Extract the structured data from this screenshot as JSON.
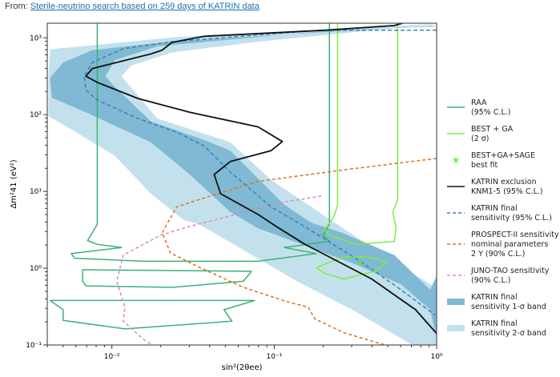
{
  "header": {
    "prefix": "From:",
    "link_text": "Sterile-neutrino search based on 259 days of KATRIN data"
  },
  "chart_data": {
    "type": "line",
    "title": "",
    "xlabel": "sin²(2θee)",
    "ylabel": "Δm²41 (eV²)",
    "xscale": "log",
    "yscale": "log",
    "xlim": [
      0.004,
      1.0
    ],
    "ylim": [
      0.1,
      1550
    ],
    "x_ticks": [
      {
        "value": 0.01,
        "label": "10⁻²"
      },
      {
        "value": 0.1,
        "label": "10⁻¹"
      },
      {
        "value": 1,
        "label": "10⁰"
      }
    ],
    "y_ticks": [
      {
        "value": 0.1,
        "label": "10⁻¹"
      },
      {
        "value": 1,
        "label": "10⁰"
      },
      {
        "value": 10,
        "label": "10¹"
      },
      {
        "value": 100,
        "label": "10²"
      },
      {
        "value": 1000,
        "label": "10³"
      }
    ],
    "legend_position": "right-outside",
    "series": [
      {
        "name": "KATRIN final sensitivity 2-σ band",
        "kind": "band",
        "color": "#c3e1ec",
        "points_log10": [
          [
            -0.03,
            3.18
          ],
          [
            -1.6,
            3.01
          ],
          [
            -2.38,
            2.85
          ],
          [
            -2.39,
            2.5
          ],
          [
            -2.39,
            1.98
          ],
          [
            -2.22,
            1.77
          ],
          [
            -1.98,
            1.46
          ],
          [
            -1.76,
            0.97
          ],
          [
            -1.56,
            0.63
          ],
          [
            -1.46,
            0.57
          ],
          [
            -0.86,
            -0.17
          ],
          [
            -0.52,
            -0.54
          ],
          [
            -0.15,
            -1.0
          ],
          [
            0,
            -1.0
          ],
          [
            0,
            -0.26
          ],
          [
            -0.32,
            0.16
          ],
          [
            -0.59,
            0.54
          ],
          [
            -1.02,
            1.15
          ],
          [
            -1.27,
            1.64
          ],
          [
            -1.72,
            1.95
          ],
          [
            -1.94,
            2.5
          ],
          [
            -1.88,
            2.64
          ],
          [
            -1.63,
            2.81
          ],
          [
            -1.1,
            2.95
          ],
          [
            0,
            3.18
          ]
        ]
      },
      {
        "name": "KATRIN final sensitivity 1-σ band",
        "kind": "band",
        "color": "#7fb9d4",
        "points_log10": [
          [
            -0.03,
            3.16
          ],
          [
            -1.64,
            2.95
          ],
          [
            -2.12,
            2.84
          ],
          [
            -2.3,
            2.68
          ],
          [
            -2.38,
            2.48
          ],
          [
            -2.37,
            2.22
          ],
          [
            -2.14,
            2.01
          ],
          [
            -1.76,
            1.64
          ],
          [
            -1.52,
            1.22
          ],
          [
            -1.27,
            0.73
          ],
          [
            -1.1,
            0.52
          ],
          [
            -0.93,
            0.39
          ],
          [
            -0.5,
            0.05
          ],
          [
            -0.22,
            -0.21
          ],
          [
            -0.04,
            -0.54
          ],
          [
            0,
            -0.92
          ],
          [
            0,
            -0.1
          ],
          [
            -0.04,
            -0.28
          ],
          [
            -0.26,
            0.17
          ],
          [
            -0.58,
            0.46
          ],
          [
            -0.77,
            0.59
          ],
          [
            -0.94,
            0.83
          ],
          [
            -1.27,
            1.53
          ],
          [
            -1.43,
            1.67
          ],
          [
            -1.76,
            1.91
          ],
          [
            -1.98,
            2.36
          ],
          [
            -2.04,
            2.5
          ],
          [
            -1.98,
            2.71
          ],
          [
            -1.72,
            2.89
          ],
          [
            -0.68,
            3.09
          ],
          [
            0,
            3.15
          ]
        ]
      },
      {
        "name": "RAA (95% C.L.)",
        "kind": "line",
        "color": "#3bb273",
        "dash": "",
        "points_log10": [
          [
            -0.66,
            3.19
          ],
          [
            -0.66,
            0.57
          ],
          [
            -0.7,
            0.43
          ],
          [
            -0.66,
            0.35
          ],
          [
            -0.94,
            0.27
          ],
          [
            -0.74,
            0.19
          ],
          [
            -1.1,
            0.09
          ],
          [
            -1.8,
            0.09
          ],
          [
            -2.23,
            0.13
          ],
          [
            -2.25,
            0.19
          ],
          [
            -1.94,
            0.27
          ],
          [
            -2.09,
            0.31
          ],
          [
            -2.15,
            0.36
          ],
          [
            -2.11,
            0.5
          ],
          [
            -2.09,
            0.57
          ],
          [
            -2.09,
            3.19
          ]
        ]
      },
      {
        "name": "RAA island 1",
        "kind": "loop",
        "color": "#3bb273",
        "dash": "",
        "points_log10": [
          [
            -2.18,
            -0.02
          ],
          [
            -1.14,
            -0.04
          ],
          [
            -1.19,
            -0.17
          ],
          [
            -1.63,
            -0.25
          ],
          [
            -2.16,
            -0.23
          ],
          [
            -2.18,
            -0.17
          ],
          [
            -2.18,
            -0.02
          ]
        ]
      },
      {
        "name": "RAA island 2",
        "kind": "loop",
        "color": "#3bb273",
        "dash": "",
        "points_log10": [
          [
            -2.38,
            -0.42
          ],
          [
            -1.12,
            -0.42
          ],
          [
            -1.31,
            -0.54
          ],
          [
            -1.26,
            -0.69
          ],
          [
            -1.92,
            -0.79
          ],
          [
            -2.3,
            -0.68
          ],
          [
            -2.3,
            -0.54
          ],
          [
            -2.38,
            -0.42
          ]
        ]
      },
      {
        "name": "BEST + GA (2σ)",
        "kind": "line",
        "color": "#7cf03c",
        "dash": "",
        "points_log10": [
          [
            -0.61,
            3.19
          ],
          [
            -0.61,
            0.83
          ],
          [
            -0.63,
            0.68
          ],
          [
            -0.69,
            0.5
          ],
          [
            -0.66,
            0.43
          ],
          [
            -0.49,
            0.31
          ],
          [
            -0.26,
            0.35
          ],
          [
            -0.25,
            0.53
          ],
          [
            -0.27,
            0.73
          ],
          [
            -0.24,
            0.89
          ],
          [
            -0.24,
            3.19
          ]
        ]
      },
      {
        "name": "BEST + GA island",
        "kind": "loop",
        "color": "#7cf03c",
        "dash": "",
        "points_log10": [
          [
            -0.74,
            0.01
          ],
          [
            -0.57,
            0.15
          ],
          [
            -0.4,
            0.14
          ],
          [
            -0.31,
            0.07
          ],
          [
            -0.38,
            -0.04
          ],
          [
            -0.57,
            -0.14
          ],
          [
            -0.69,
            -0.07
          ],
          [
            -0.74,
            0.01
          ]
        ]
      },
      {
        "name": "PROSPECT-II sensitivity nominal parameters 2 Y (90% C.L.)",
        "kind": "line",
        "color": "#e07020",
        "dash": "4,3",
        "points_log10": [
          [
            0,
            1.43
          ],
          [
            -0.61,
            1.27
          ],
          [
            -1.1,
            1.13
          ],
          [
            -1.35,
            0.97
          ],
          [
            -1.6,
            0.8
          ],
          [
            -1.67,
            0.54
          ],
          [
            -1.69,
            0.46
          ],
          [
            -1.64,
            0.2
          ],
          [
            -1.46,
            0.01
          ],
          [
            -1.19,
            -0.25
          ],
          [
            -0.93,
            -0.43
          ],
          [
            -0.79,
            -0.51
          ],
          [
            -0.75,
            -0.66
          ],
          [
            -0.57,
            -0.84
          ],
          [
            -0.32,
            -1.0
          ]
        ]
      },
      {
        "name": "JUNO-TAO sensitivity (90% C.L.)",
        "kind": "line",
        "color": "#d987c0",
        "dash": "4,3",
        "points_log10": [
          [
            -0.71,
            0.94
          ],
          [
            -0.97,
            0.85
          ],
          [
            -1.27,
            0.68
          ],
          [
            -1.53,
            0.54
          ],
          [
            -1.7,
            0.43
          ],
          [
            -1.93,
            0.17
          ],
          [
            -1.97,
            -0.17
          ],
          [
            -1.92,
            -0.51
          ],
          [
            -1.93,
            -0.69
          ],
          [
            -1.81,
            -0.92
          ],
          [
            -1.75,
            -1.0
          ]
        ]
      },
      {
        "name": "KATRIN final sensitivity (95% C.L.)",
        "kind": "line",
        "color": "#3f7fb8",
        "dash": "5,3",
        "points_log10": [
          [
            0,
            3.1
          ],
          [
            -0.72,
            3.1
          ],
          [
            -1.63,
            2.95
          ],
          [
            -1.93,
            2.86
          ],
          [
            -2.12,
            2.68
          ],
          [
            -2.17,
            2.5
          ],
          [
            -2.16,
            2.32
          ],
          [
            -2.09,
            2.19
          ],
          [
            -1.84,
            1.95
          ],
          [
            -1.6,
            1.77
          ],
          [
            -1.43,
            1.59
          ],
          [
            -1.27,
            1.25
          ],
          [
            -1.02,
            0.8
          ],
          [
            -0.81,
            0.54
          ],
          [
            -0.47,
            0.09
          ],
          [
            -0.22,
            -0.28
          ],
          [
            -0.01,
            -0.61
          ]
        ]
      },
      {
        "name": "KATRIN exclusion KNM1-5 (95% C.L.)",
        "kind": "line",
        "color": "#111111",
        "dash": "",
        "points_log10": [
          [
            -0.21,
            3.19
          ],
          [
            -0.26,
            3.16
          ],
          [
            -0.68,
            3.1
          ],
          [
            -1.43,
            3.02
          ],
          [
            -1.63,
            2.94
          ],
          [
            -1.69,
            2.84
          ],
          [
            -1.76,
            2.79
          ],
          [
            -2.12,
            2.6
          ],
          [
            -2.16,
            2.5
          ],
          [
            -2.09,
            2.42
          ],
          [
            -1.84,
            2.21
          ],
          [
            -1.52,
            2.03
          ],
          [
            -1.1,
            1.84
          ],
          [
            -0.95,
            1.65
          ],
          [
            -1.02,
            1.53
          ],
          [
            -1.27,
            1.39
          ],
          [
            -1.37,
            1.22
          ],
          [
            -1.33,
            0.97
          ],
          [
            -1.1,
            0.7
          ],
          [
            -0.97,
            0.52
          ],
          [
            -0.81,
            0.31
          ],
          [
            -0.4,
            -0.14
          ],
          [
            -0.13,
            -0.54
          ],
          [
            0,
            -0.85
          ]
        ]
      }
    ],
    "best_fit": {
      "name": "BEST+GA+SAGE best fit",
      "x": 0.34,
      "y": 1.2,
      "color": "#5fd84a"
    },
    "legend": [
      {
        "label": [
          "RAA",
          "(95% C.L.)"
        ],
        "style": "line",
        "color": "#3bb273"
      },
      {
        "label": [
          "BEST + GA",
          "(2 σ)"
        ],
        "style": "line",
        "color": "#7cf03c"
      },
      {
        "label": [
          "BEST+GA+SAGE",
          "best fit"
        ],
        "style": "star",
        "color": "#7cf03c"
      },
      {
        "label": [
          "KATRIN exclusion",
          "KNM1-5 (95% C.L.)"
        ],
        "style": "line",
        "color": "#111111"
      },
      {
        "label": [
          "KATRIN final",
          "sensitivity (95% C.L.)"
        ],
        "style": "dash",
        "color": "#3f7fb8"
      },
      {
        "label": [
          "PROSPECT-II sensitivity",
          "nominal parameters",
          "2 Y (90% C.L.)"
        ],
        "style": "dash",
        "color": "#e07020"
      },
      {
        "label": [
          "JUNO-TAO sensitivity",
          "(90% C.L.)"
        ],
        "style": "dash",
        "color": "#d987c0"
      },
      {
        "label": [
          "KATRIN final",
          "sensitivity 1-σ band"
        ],
        "style": "patch",
        "color": "#7fb9d4"
      },
      {
        "label": [
          "KATRIN final",
          "sensitivity 2-σ band"
        ],
        "style": "patch",
        "color": "#c3e1ec"
      }
    ]
  }
}
